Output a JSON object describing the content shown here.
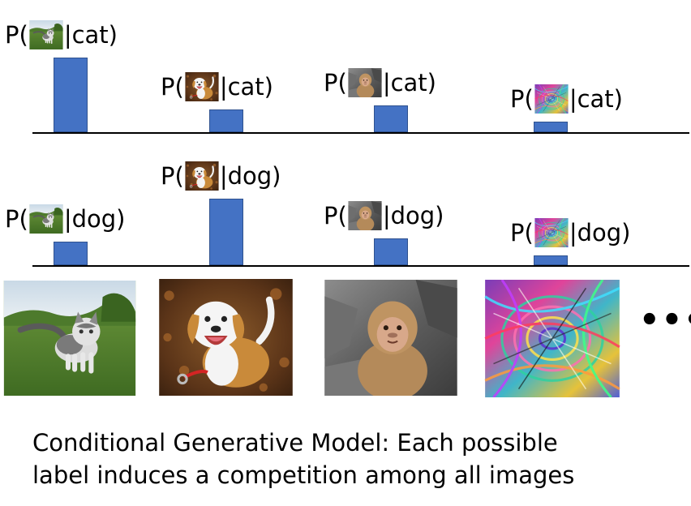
{
  "rows": [
    {
      "condition": "cat",
      "entries": [
        {
          "image": "cat-photo",
          "prefix": "P(",
          "suffix": "|cat)",
          "probability": 0.92
        },
        {
          "image": "dog-photo",
          "prefix": "P(",
          "suffix": "|cat)",
          "probability": 0.28
        },
        {
          "image": "monkey-photo",
          "prefix": "P(",
          "suffix": "|cat)",
          "probability": 0.33
        },
        {
          "image": "abstract-swirl-image",
          "prefix": "P(",
          "suffix": "|cat)",
          "probability": 0.13
        }
      ]
    },
    {
      "condition": "dog",
      "entries": [
        {
          "image": "cat-photo",
          "prefix": "P(",
          "suffix": "|dog)",
          "probability": 0.29
        },
        {
          "image": "dog-photo",
          "prefix": "P(",
          "suffix": "|dog)",
          "probability": 0.82
        },
        {
          "image": "monkey-photo",
          "prefix": "P(",
          "suffix": "|dog)",
          "probability": 0.33
        },
        {
          "image": "abstract-swirl-image",
          "prefix": "P(",
          "suffix": "|dog)",
          "probability": 0.12
        }
      ]
    }
  ],
  "images": [
    "cat-photo",
    "dog-photo",
    "monkey-photo",
    "abstract-swirl-image"
  ],
  "ellipsis": "•••",
  "caption": {
    "line1": "Conditional Generative Model: Each possible",
    "line2": "label induces a competition among all images"
  },
  "colors": {
    "bar": "#4472c4"
  }
}
